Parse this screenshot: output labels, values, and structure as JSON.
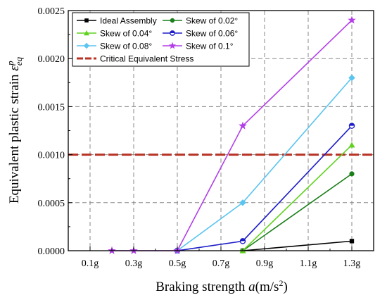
{
  "chart_data": {
    "type": "line",
    "title": "",
    "xlabel": "Braking strength a(m/s²)",
    "ylabel": "Equivalent plastic strain ε_eq^p",
    "xlim": [
      0,
      1.4
    ],
    "ylim": [
      0,
      0.0025
    ],
    "x_ticks": [
      0.1,
      0.3,
      0.5,
      0.7,
      0.9,
      1.1,
      1.3
    ],
    "x_tick_labels": [
      "0.1g",
      "0.3g",
      "0.5g",
      "0.7g",
      "0.9g",
      "1.1g",
      "1.3g"
    ],
    "y_ticks": [
      0,
      0.0005,
      0.001,
      0.0015,
      0.002,
      0.0025
    ],
    "y_tick_labels": [
      "0.0000",
      "0.0005",
      "0.0010",
      "0.0015",
      "0.0020",
      "0.0025"
    ],
    "grid": true,
    "legend_position": "top",
    "series": [
      {
        "name": "Ideal Assembly",
        "color": "#000000",
        "marker": "square",
        "x": [
          0.8,
          1.3
        ],
        "y": [
          0,
          0.0001
        ]
      },
      {
        "name": "Skew of 0.02°",
        "color": "#1a7f1a",
        "marker": "circle",
        "x": [
          0.8,
          1.3
        ],
        "y": [
          0,
          0.0008
        ]
      },
      {
        "name": "Skew of 0.04°",
        "color": "#5fd21e",
        "marker": "triangle",
        "x": [
          0.8,
          1.3
        ],
        "y": [
          0,
          0.0011
        ]
      },
      {
        "name": "Skew of 0.06°",
        "color": "#1c1cc8",
        "marker": "half-circle",
        "x": [
          0.5,
          0.8,
          1.3
        ],
        "y": [
          0,
          0.0001,
          0.0013
        ]
      },
      {
        "name": "Skew of 0.08°",
        "color": "#5bc4f0",
        "marker": "diamond",
        "x": [
          0.5,
          0.8,
          1.3
        ],
        "y": [
          0,
          0.0005,
          0.0018
        ]
      },
      {
        "name": "Skew of 0.1°",
        "color": "#b23ee8",
        "marker": "star",
        "x": [
          0.2,
          0.3,
          0.5,
          0.8,
          1.3
        ],
        "y": [
          0,
          0,
          0,
          0.0013,
          0.0024
        ]
      }
    ],
    "reference_line": {
      "name": "Critical Equivalent Stress",
      "y": 0.001,
      "color": "#b83224"
    }
  }
}
